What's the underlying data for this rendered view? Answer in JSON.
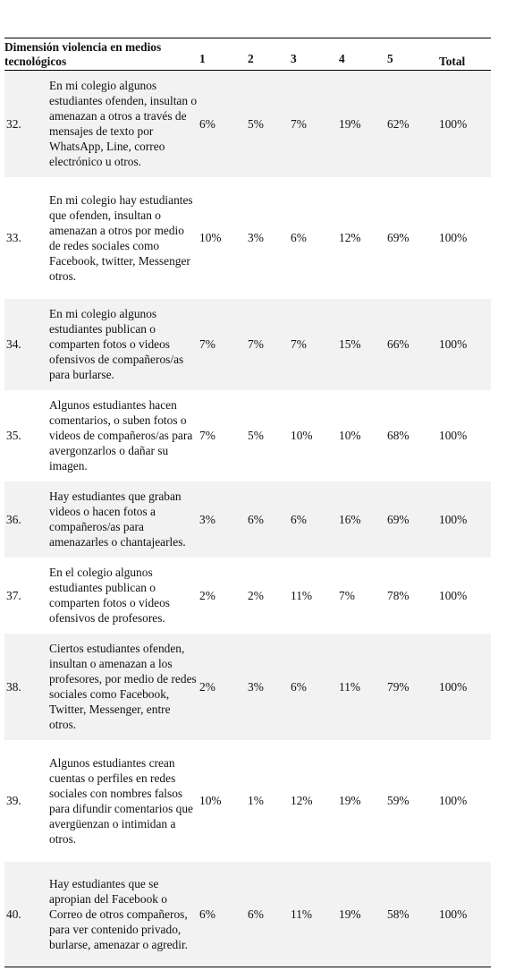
{
  "table": {
    "header": [
      "Dimensión violencia en medios tecnológicos",
      "1",
      "2",
      "3",
      "4",
      "5",
      "Total"
    ],
    "rows": [
      [
        "32.",
        "En mi colegio algunos estudiantes ofenden, insultan o amenazan a otros a través de mensajes de texto por WhatsApp, Line, correo electrónico u otros.",
        "6%",
        "5%",
        "7%",
        "19%",
        "62%",
        "100%"
      ],
      [
        "33.",
        "En mi colegio hay estudiantes que ofenden, insultan o amenazan a otros por medio de redes sociales como Facebook, twitter, Messenger otros.",
        "10%",
        "3%",
        "6%",
        "12%",
        "69%",
        "100%"
      ],
      [
        "34.",
        "En mi colegio algunos estudiantes publican o comparten fotos o videos ofensivos de compañeros/as para burlarse.",
        "7%",
        "7%",
        "7%",
        "15%",
        "66%",
        "100%"
      ],
      [
        "35.",
        "Algunos estudiantes hacen comentarios, o suben fotos o videos de compañeros/as para avergonzarlos o dañar su imagen.",
        "7%",
        "5%",
        "10%",
        "10%",
        "68%",
        "100%"
      ],
      [
        "36.",
        "Hay estudiantes que graban videos o hacen fotos a compañeros/as para amenazarles o chantajearles.",
        "3%",
        "6%",
        "6%",
        "16%",
        "69%",
        "100%"
      ],
      [
        "37.",
        "En el colegio algunos estudiantes publican o comparten fotos o videos ofensivos de profesores.",
        "2%",
        "2%",
        "11%",
        "7%",
        "78%",
        "100%"
      ],
      [
        "38.",
        "Ciertos estudiantes ofenden, insultan o amenazan a los profesores, por medio de redes sociales como Facebook, Twitter, Messenger, entre otros.",
        "2%",
        "3%",
        "6%",
        "11%",
        "79%",
        "100%"
      ],
      [
        "39.",
        "Algunos estudiantes crean cuentas o perfiles en redes sociales con nombres falsos para difundir comentarios que avergüenzan o intimidan a otros.",
        "10%",
        "1%",
        "12%",
        "19%",
        "59%",
        "100%"
      ],
      [
        "40.",
        "Hay estudiantes que se apropian del Facebook o Correo de otros compañeros, para ver contenido privado, burlarse, amenazar o agredir.",
        "6%",
        "6%",
        "11%",
        "19%",
        "58%",
        "100%"
      ]
    ]
  }
}
